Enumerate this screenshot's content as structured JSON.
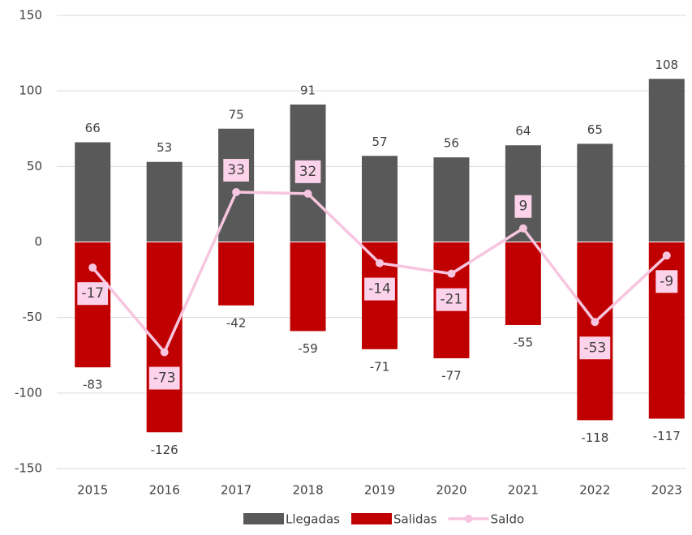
{
  "chart_data": {
    "type": "bar_line",
    "categories": [
      "2015",
      "2016",
      "2017",
      "2018",
      "2019",
      "2020",
      "2021",
      "2022",
      "2023"
    ],
    "series": [
      {
        "name": "Llegadas",
        "color": "#595959",
        "type": "bar",
        "values": [
          66,
          53,
          75,
          91,
          57,
          56,
          64,
          65,
          108
        ]
      },
      {
        "name": "Salidas",
        "color": "#c00000",
        "type": "bar",
        "values": [
          -83,
          -126,
          -42,
          -59,
          -71,
          -77,
          -55,
          -118,
          -117
        ]
      },
      {
        "name": "Saldo",
        "color": "#f7c5df",
        "type": "line",
        "values": [
          -17,
          -73,
          33,
          32,
          -14,
          -21,
          9,
          -53,
          -9
        ]
      }
    ],
    "ylim": [
      -150,
      150
    ],
    "yticks": [
      -150,
      -100,
      -50,
      0,
      50,
      100,
      150
    ],
    "grid": true,
    "legend": "bottom"
  }
}
